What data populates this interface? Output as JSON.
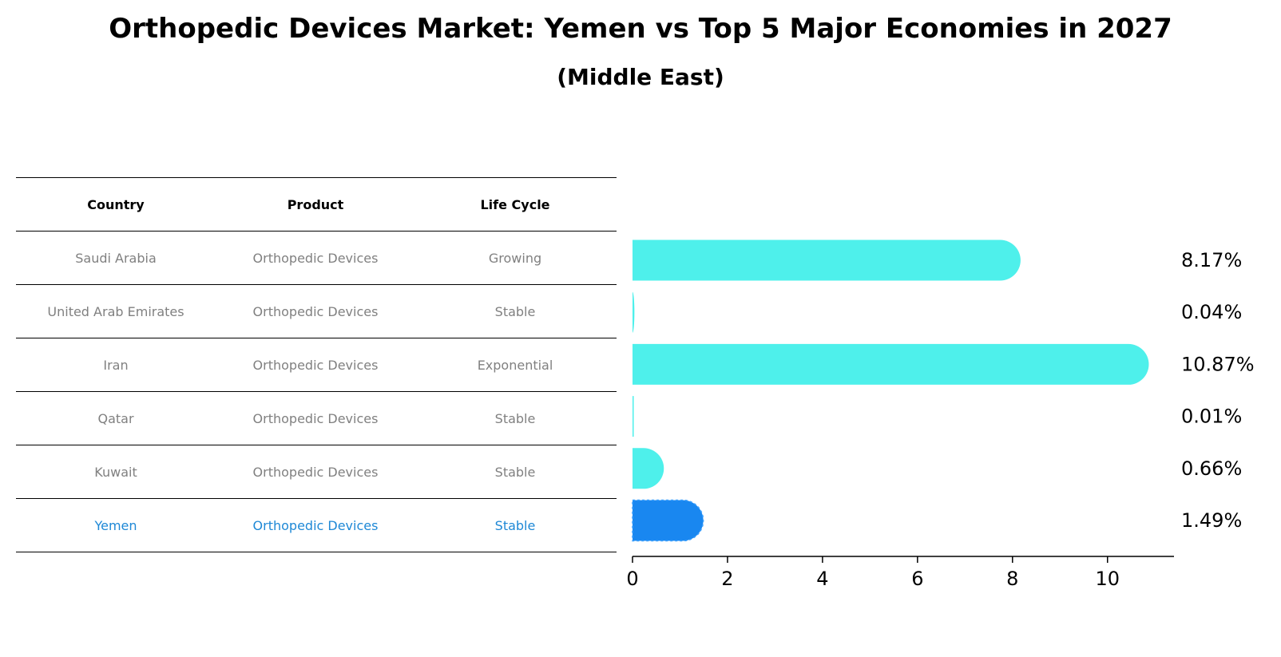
{
  "title": "Orthopedic Devices Market: Yemen vs Top 5 Major Economies in 2027",
  "subtitle": "(Middle East)",
  "table": {
    "headers": [
      "Country",
      "Product",
      "Life Cycle"
    ],
    "rows": [
      {
        "country": "Saudi Arabia",
        "product": "Orthopedic Devices",
        "life_cycle": "Growing"
      },
      {
        "country": "United Arab Emirates",
        "product": "Orthopedic Devices",
        "life_cycle": "Stable"
      },
      {
        "country": "Iran",
        "product": "Orthopedic Devices",
        "life_cycle": "Exponential"
      },
      {
        "country": "Qatar",
        "product": "Orthopedic Devices",
        "life_cycle": "Stable"
      },
      {
        "country": "Kuwait",
        "product": "Orthopedic Devices",
        "life_cycle": "Stable"
      },
      {
        "country": "Yemen",
        "product": "Orthopedic Devices",
        "life_cycle": "Stable"
      }
    ]
  },
  "colors": {
    "bar": "#4ef0eb",
    "highlight": "#1987f0",
    "highlight_text": "#1e88d6",
    "muted_text": "#808080"
  },
  "chart_data": {
    "type": "bar",
    "orientation": "horizontal",
    "categories": [
      "Saudi Arabia",
      "United Arab Emirates",
      "Iran",
      "Qatar",
      "Kuwait",
      "Yemen"
    ],
    "values": [
      8.17,
      0.04,
      10.87,
      0.01,
      0.66,
      1.49
    ],
    "value_labels": [
      "8.17%",
      "0.04%",
      "10.87%",
      "0.01%",
      "0.66%",
      "1.49%"
    ],
    "highlight": "Yemen",
    "xlim": [
      0,
      11.4
    ],
    "xticks": [
      0,
      2,
      4,
      6,
      8,
      10
    ],
    "xtick_labels": [
      "0",
      "2",
      "4",
      "6",
      "8",
      "10"
    ]
  }
}
